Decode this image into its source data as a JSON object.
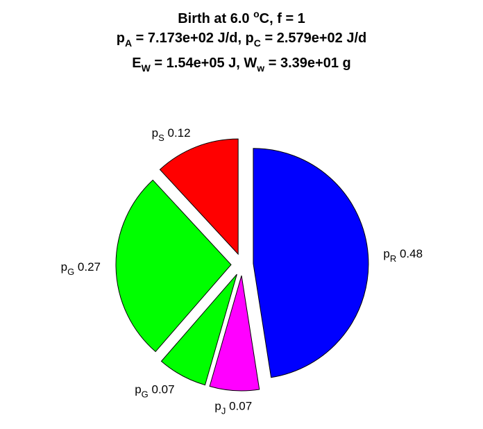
{
  "chart_data": {
    "type": "pie",
    "title_lines": [
      {
        "parts": [
          {
            "t": "Birth at 6.0 "
          },
          {
            "t": "o",
            "sup": true
          },
          {
            "t": "C, f = 1"
          }
        ]
      },
      {
        "parts": [
          {
            "t": "p"
          },
          {
            "t": "A",
            "sub": true
          },
          {
            "t": " = 7.173e+02 J/d, p"
          },
          {
            "t": "C",
            "sub": true
          },
          {
            "t": " = 2.579e+02 J/d"
          }
        ]
      },
      {
        "parts": [
          {
            "t": "E"
          },
          {
            "t": "W",
            "sub": true
          },
          {
            "t": " = 1.54e+05 J, W"
          },
          {
            "t": "w",
            "sub": true
          },
          {
            "t": " = 3.39e+01 g"
          }
        ]
      }
    ],
    "slices": [
      {
        "name": "p",
        "sub": "R",
        "value": 0.48,
        "label": "0.48",
        "color": "#0000ff"
      },
      {
        "name": "p",
        "sub": "J",
        "value": 0.07,
        "label": "0.07",
        "color": "#ff00ff"
      },
      {
        "name": "p",
        "sub": "G",
        "value": 0.07,
        "label": "0.07",
        "color": "#00ff00"
      },
      {
        "name": "p",
        "sub": "G",
        "value": 0.27,
        "label": "0.27",
        "color": "#00ff00"
      },
      {
        "name": "p",
        "sub": "S",
        "value": 0.12,
        "label": "0.12",
        "color": "#ff0000"
      }
    ],
    "exploded": true,
    "direction": "clockwise from top"
  }
}
